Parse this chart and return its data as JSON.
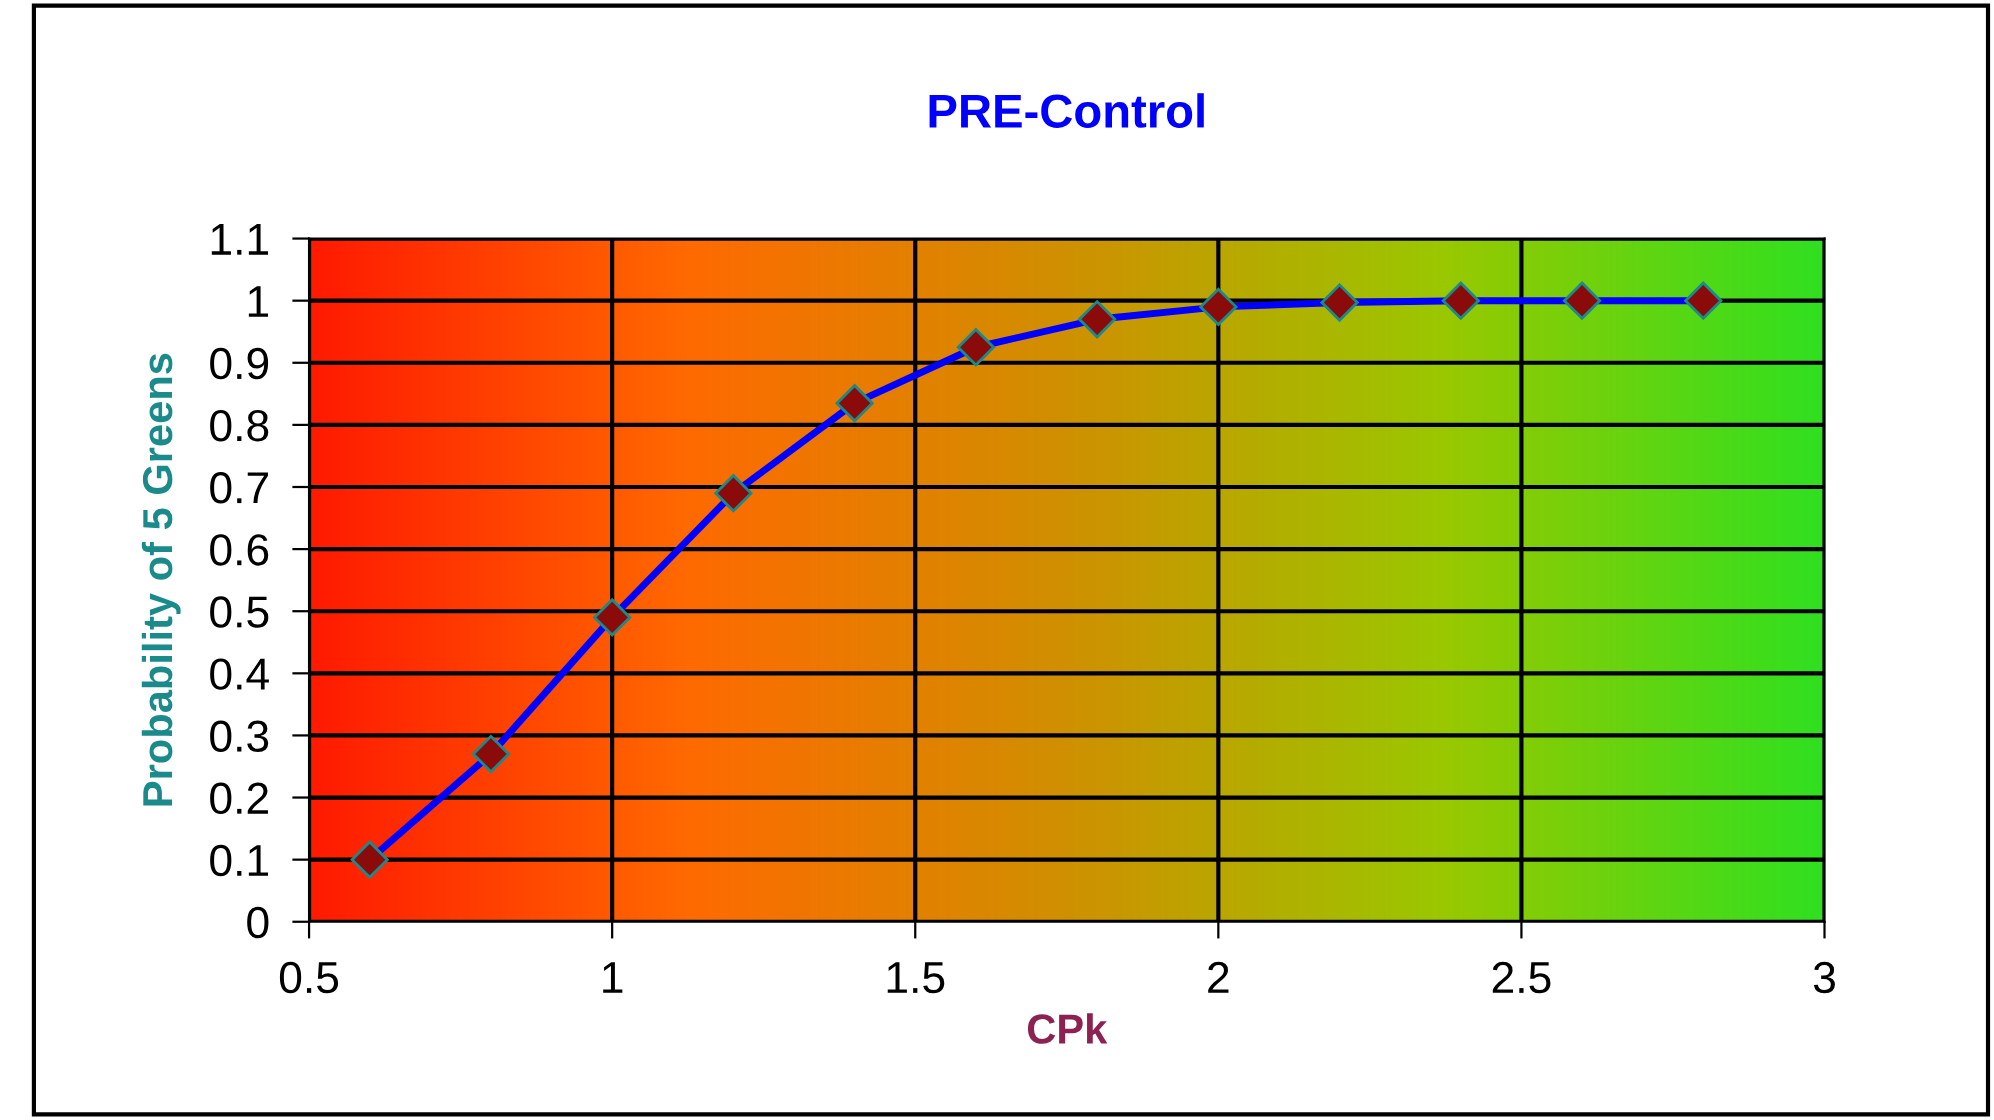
{
  "chart_data": {
    "type": "line",
    "title": "PRE-Control",
    "xlabel": "CPk",
    "ylabel": "Probability of 5 Greens",
    "x": [
      0.6,
      0.8,
      1.0,
      1.2,
      1.4,
      1.6,
      1.8,
      2.0,
      2.2,
      2.4,
      2.6,
      2.8
    ],
    "series": [
      {
        "color": "#0000ff",
        "values": [
          0.1,
          0.27,
          0.49,
          0.69,
          0.835,
          0.925,
          0.97,
          0.99,
          0.997,
          1.0,
          1.0,
          1.0
        ]
      }
    ],
    "marker": "diamond",
    "line_style": "solid",
    "xlim": [
      0.5,
      3
    ],
    "xticks": [
      0.5,
      1,
      1.5,
      2,
      2.5,
      3
    ],
    "ylim": [
      0,
      1.1
    ],
    "yticks": [
      0,
      0.1,
      0.2,
      0.3,
      0.4,
      0.5,
      0.6,
      0.7,
      0.8,
      0.9,
      1,
      1.1
    ],
    "grid": true,
    "legend": false
  }
}
